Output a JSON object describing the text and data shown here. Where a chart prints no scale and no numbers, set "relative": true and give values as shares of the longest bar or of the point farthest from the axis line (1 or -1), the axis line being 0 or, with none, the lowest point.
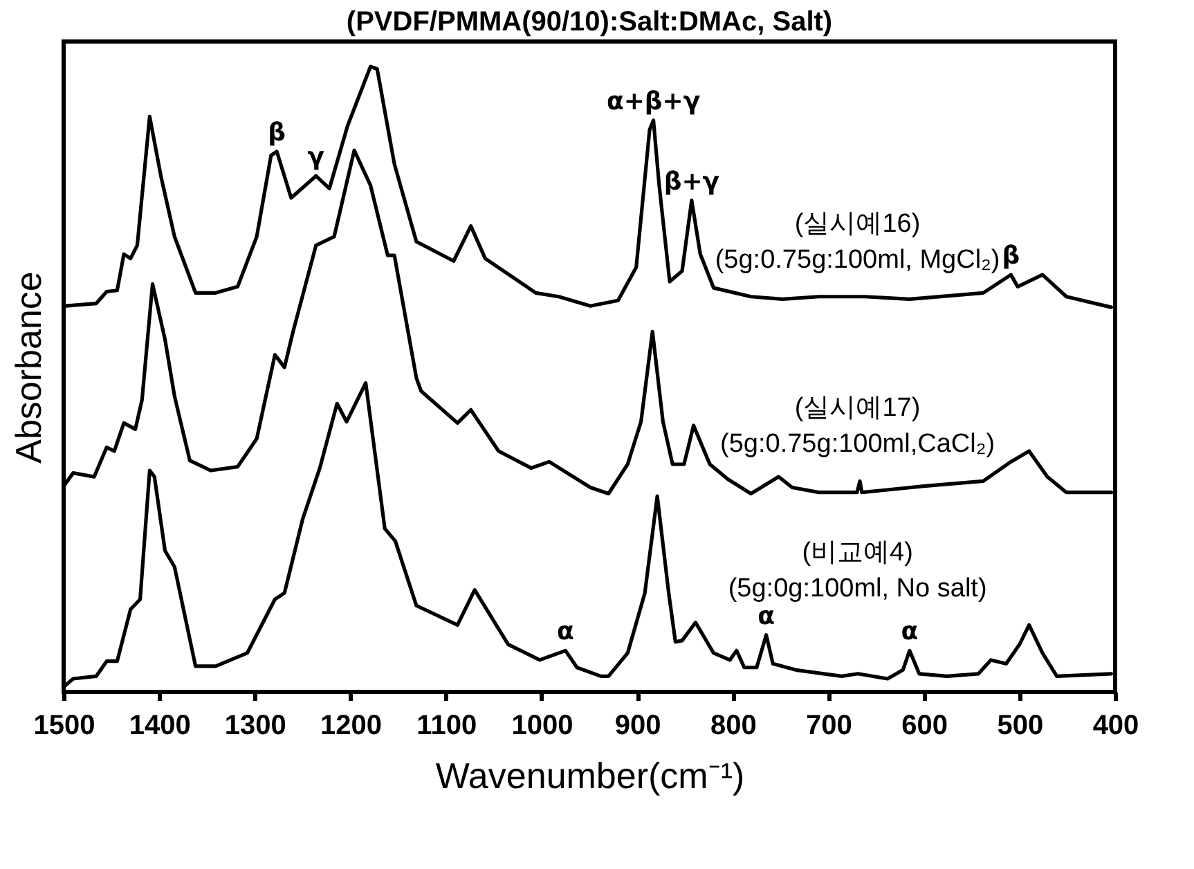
{
  "chart_data": {
    "type": "line",
    "title": "(PVDF/PMMA(90/10):Salt:DMAc, Salt)",
    "xlabel": "Wavenumber(cm⁻¹)",
    "ylabel": "Absorbance",
    "relative": true,
    "xlim": [
      1500,
      400
    ],
    "xticks": [
      1500,
      1400,
      1300,
      1200,
      1100,
      1000,
      900,
      800,
      700,
      600,
      500,
      400
    ],
    "series": [
      {
        "name": "(실시예16)\n(5g:0.75g:100ml, MgCl₂)",
        "color": "#000000",
        "x": [
          1500,
          1466,
          1455,
          1444,
          1437,
          1430,
          1423,
          1410,
          1398,
          1384,
          1362,
          1341,
          1318,
          1298,
          1283,
          1277,
          1262,
          1236,
          1222,
          1203,
          1179,
          1172,
          1154,
          1131,
          1092,
          1074,
          1059,
          1006,
          982,
          949,
          920,
          901,
          887,
          883,
          877,
          866,
          853,
          843,
          834,
          820,
          781,
          748,
          710,
          662,
          615,
          538,
          509,
          502,
          476,
          451,
          404
        ],
        "values": [
          0.617,
          0.621,
          0.64,
          0.642,
          0.7,
          0.693,
          0.714,
          0.92,
          0.823,
          0.728,
          0.638,
          0.638,
          0.648,
          0.728,
          0.858,
          0.864,
          0.79,
          0.825,
          0.805,
          0.905,
          1,
          0.996,
          0.844,
          0.72,
          0.689,
          0.745,
          0.693,
          0.638,
          0.632,
          0.617,
          0.626,
          0.679,
          0.899,
          0.914,
          0.81,
          0.656,
          0.673,
          0.786,
          0.7,
          0.646,
          0.632,
          0.628,
          0.632,
          0.632,
          0.628,
          0.638,
          0.667,
          0.648,
          0.667,
          0.632,
          0.615
        ]
      },
      {
        "name": "(실시예17)\n(5g:0.75g:100ml,CaCl₂)",
        "color": "#000000",
        "x": [
          1500,
          1490,
          1468,
          1455,
          1447,
          1437,
          1425,
          1418,
          1407,
          1394,
          1384,
          1368,
          1346,
          1318,
          1298,
          1279,
          1269,
          1260,
          1236,
          1217,
          1196,
          1179,
          1161,
          1154,
          1131,
          1126,
          1088,
          1074,
          1045,
          1011,
          992,
          949,
          930,
          910,
          896,
          884,
          873,
          863,
          851,
          841,
          824,
          805,
          781,
          752,
          738,
          710,
          670,
          667,
          665,
          600,
          538,
          509,
          490,
          471,
          451,
          404
        ],
        "values": [
          0.329,
          0.35,
          0.344,
          0.391,
          0.385,
          0.43,
          0.42,
          0.467,
          0.652,
          0.564,
          0.473,
          0.37,
          0.354,
          0.36,
          0.405,
          0.539,
          0.519,
          0.576,
          0.714,
          0.728,
          0.866,
          0.81,
          0.698,
          0.698,
          0.502,
          0.481,
          0.43,
          0.451,
          0.385,
          0.358,
          0.368,
          0.327,
          0.317,
          0.364,
          0.432,
          0.576,
          0.432,
          0.364,
          0.364,
          0.426,
          0.364,
          0.34,
          0.317,
          0.344,
          0.327,
          0.319,
          0.319,
          0.337,
          0.319,
          0.329,
          0.337,
          0.368,
          0.385,
          0.344,
          0.319,
          0.319
        ]
      },
      {
        "name": "(비교예4)\n(5g:0g:100ml, No salt)",
        "color": "#000000",
        "x": [
          1500,
          1490,
          1466,
          1455,
          1444,
          1430,
          1420,
          1410,
          1405,
          1394,
          1384,
          1362,
          1341,
          1308,
          1279,
          1269,
          1250,
          1232,
          1214,
          1204,
          1184,
          1164,
          1153,
          1131,
          1088,
          1070,
          1035,
          1002,
          975,
          963,
          938,
          930,
          910,
          892,
          879,
          867,
          860,
          853,
          839,
          820,
          803,
          796,
          788,
          775,
          765,
          758,
          734,
          686,
          669,
          638,
          622,
          615,
          605,
          576,
          543,
          530,
          514,
          500,
          490,
          476,
          461,
          404
        ],
        "values": [
          0.008,
          0.021,
          0.025,
          0.049,
          0.049,
          0.132,
          0.148,
          0.354,
          0.344,
          0.226,
          0.2,
          0.041,
          0.041,
          0.062,
          0.148,
          0.158,
          0.276,
          0.358,
          0.461,
          0.432,
          0.494,
          0.261,
          0.241,
          0.138,
          0.107,
          0.163,
          0.076,
          0.051,
          0.066,
          0.039,
          0.025,
          0.025,
          0.062,
          0.158,
          0.313,
          0.158,
          0.08,
          0.082,
          0.111,
          0.062,
          0.051,
          0.066,
          0.039,
          0.039,
          0.091,
          0.045,
          0.035,
          0.025,
          0.029,
          0.021,
          0.035,
          0.066,
          0.029,
          0.025,
          0.029,
          0.051,
          0.045,
          0.076,
          0.107,
          0.062,
          0.025,
          0.029
        ]
      }
    ],
    "annotations": [
      {
        "text": "β",
        "x": 1277,
        "y": 0.864
      },
      {
        "text": "γ",
        "x": 1236,
        "y": 0.825
      },
      {
        "text": "α+β+γ",
        "x": 883,
        "y": 0.914
      },
      {
        "text": "β+γ",
        "x": 843,
        "y": 0.786
      },
      {
        "text": "β",
        "x": 509,
        "y": 0.667
      },
      {
        "text": "α",
        "x": 975,
        "y": 0.066
      },
      {
        "text": "α",
        "x": 765,
        "y": 0.091
      },
      {
        "text": "α",
        "x": 615,
        "y": 0.066
      }
    ]
  }
}
